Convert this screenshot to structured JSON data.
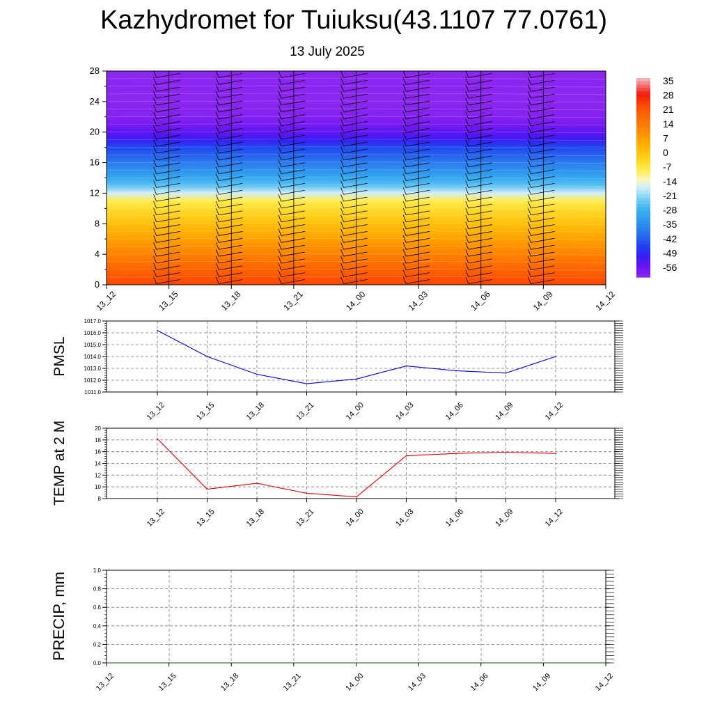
{
  "header": {
    "title": "Kazhydromet for Tuiuksu(43.1107 77.0761)",
    "subtitle": "13 July 2025"
  },
  "chart_data": [
    {
      "type": "heatmap",
      "title": "Kazhydromet for Tuiuksu(43.1107 77.0761)",
      "subtitle": "13 July 2025",
      "x_categories": [
        "13_12",
        "13_15",
        "13_18",
        "13_21",
        "14_00",
        "14_03",
        "14_06",
        "14_09",
        "14_12"
      ],
      "y_ticks": [
        0,
        4,
        8,
        12,
        16,
        20,
        24,
        28
      ],
      "ylim": [
        0,
        28
      ],
      "colorbar": {
        "labels": [
          "35",
          "28",
          "21",
          "14",
          "7",
          "0",
          "-7",
          "-14",
          "-21",
          "-28",
          "-35",
          "-42",
          "-49",
          "-56"
        ],
        "range": [
          -60,
          38
        ]
      },
      "temperature_profile": [
        {
          "y": 0,
          "value": 25
        },
        {
          "y": 2,
          "value": 20
        },
        {
          "y": 4,
          "value": 14
        },
        {
          "y": 6,
          "value": 8
        },
        {
          "y": 8,
          "value": 2
        },
        {
          "y": 10,
          "value": -4
        },
        {
          "y": 11,
          "value": -7
        },
        {
          "y": 12,
          "value": -16
        },
        {
          "y": 13,
          "value": -24
        },
        {
          "y": 14,
          "value": -29
        },
        {
          "y": 16,
          "value": -37
        },
        {
          "y": 18,
          "value": -44
        },
        {
          "y": 19,
          "value": -50
        },
        {
          "y": 20,
          "value": -54
        },
        {
          "y": 21,
          "value": -57
        },
        {
          "y": 22,
          "value": -59
        },
        {
          "y": 24,
          "value": -60
        },
        {
          "y": 28,
          "value": -60
        }
      ]
    },
    {
      "type": "line",
      "ylabel": "PMSL",
      "categories": [
        "13_12",
        "13_15",
        "13_18",
        "13_21",
        "14_00",
        "14_03",
        "14_06",
        "14_09",
        "14_12"
      ],
      "ylim": [
        1011.0,
        1017.0
      ],
      "y_ticks": [
        "1011.0",
        "1012.0",
        "1013.0",
        "1014.0",
        "1015.0",
        "1016.0",
        "1017.0"
      ],
      "series": [
        {
          "values": [
            1016.2,
            1014.0,
            1012.5,
            1011.7,
            1012.1,
            1013.2,
            1012.8,
            1012.6,
            1014.0
          ]
        }
      ],
      "color": "#0000e0",
      "grid": true
    },
    {
      "type": "line",
      "ylabel": "TEMP at 2 M",
      "categories": [
        "13_12",
        "13_15",
        "13_18",
        "13_21",
        "14_00",
        "14_03",
        "14_06",
        "14_09",
        "14_12"
      ],
      "ylim": [
        8,
        20
      ],
      "y_ticks": [
        "8",
        "10",
        "12",
        "14",
        "16",
        "18",
        "20"
      ],
      "series": [
        {
          "values": [
            18.2,
            9.6,
            10.6,
            8.9,
            8.3,
            15.3,
            15.7,
            15.9,
            15.7
          ]
        }
      ],
      "color": "#e00000",
      "grid": true
    },
    {
      "type": "line",
      "ylabel": "PRECIP, mm",
      "categories": [
        "13_12",
        "13_15",
        "13_18",
        "13_21",
        "14_00",
        "14_03",
        "14_06",
        "14_09",
        "14_12"
      ],
      "ylim": [
        0,
        1
      ],
      "y_ticks": [
        "0.0",
        "0.2",
        "0.4",
        "0.6",
        "0.8",
        "1.0"
      ],
      "series": [
        {
          "values": [
            0,
            0,
            0,
            0,
            0,
            0,
            0,
            0,
            0
          ]
        }
      ],
      "color": "#006000",
      "grid": true
    }
  ]
}
